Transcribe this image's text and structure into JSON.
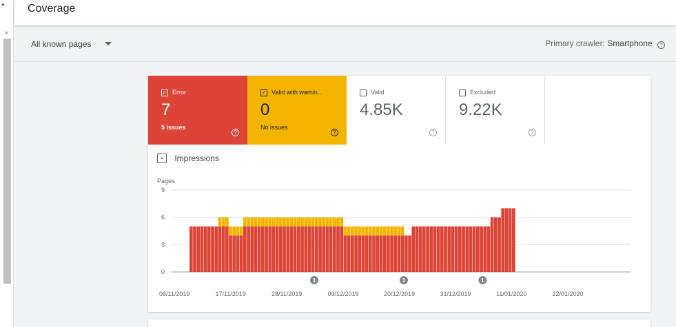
{
  "header": {
    "title": "Coverage"
  },
  "filter": {
    "label": "All known pages"
  },
  "crawler": {
    "label": "Primary crawler:",
    "value": "Smartphone"
  },
  "tiles": [
    {
      "id": "error",
      "label": "Error",
      "value": "7",
      "sub": "5 issues",
      "checked": true,
      "color": "#db4437"
    },
    {
      "id": "warning",
      "label": "Valid with warnin...",
      "value": "0",
      "sub": "No issues",
      "checked": true,
      "color": "#f4b400"
    },
    {
      "id": "valid",
      "label": "Valid",
      "value": "4.85K",
      "sub": "",
      "checked": false,
      "color": "#ffffff"
    },
    {
      "id": "excluded",
      "label": "Excluded",
      "value": "9.22K",
      "sub": "",
      "checked": false,
      "color": "#ffffff"
    }
  ],
  "impressions": {
    "label": "Impressions"
  },
  "chart_data": {
    "type": "bar",
    "ylabel": "Pages",
    "ylim": [
      0,
      9
    ],
    "yticks": [
      0,
      3,
      6,
      9
    ],
    "grid": true,
    "x_tick_labels": [
      "06/11/2019",
      "17/11/2019",
      "28/11/2019",
      "09/12/2019",
      "20/12/2019",
      "31/12/2019",
      "11/01/2020",
      "22/01/2020"
    ],
    "series": [
      {
        "color": "#db4437",
        "values": [
          5,
          5,
          5,
          5,
          5,
          5,
          5,
          5,
          5,
          5,
          5,
          4,
          4,
          4,
          4,
          5,
          5,
          5,
          5,
          5,
          5,
          5,
          5,
          5,
          5,
          5,
          5,
          5,
          5,
          5,
          5,
          5,
          5,
          5,
          5,
          5,
          5,
          5,
          5,
          5,
          5,
          5,
          5,
          4,
          4,
          4,
          4,
          4,
          4,
          4,
          4,
          4,
          4,
          4,
          4,
          4,
          4,
          4,
          4,
          4,
          4,
          4,
          5,
          5,
          5,
          5,
          5,
          5,
          5,
          5,
          5,
          5,
          5,
          5,
          5,
          5,
          5,
          5,
          5,
          5,
          5,
          5,
          5,
          5,
          6,
          6,
          6,
          7,
          7,
          7,
          7
        ]
      },
      {
        "color": "#f4b400",
        "values": [
          0,
          0,
          0,
          0,
          0,
          0,
          0,
          0,
          1,
          1,
          1,
          1,
          1,
          1,
          1,
          1,
          1,
          1,
          1,
          1,
          1,
          1,
          1,
          1,
          1,
          1,
          1,
          1,
          1,
          1,
          1,
          1,
          1,
          1,
          1,
          1,
          1,
          1,
          1,
          1,
          1,
          1,
          1,
          1,
          1,
          1,
          1,
          1,
          1,
          1,
          1,
          1,
          1,
          1,
          1,
          1,
          1,
          1,
          1,
          1,
          0,
          0,
          0,
          0,
          0,
          0,
          0,
          0,
          0,
          0,
          0,
          0,
          0,
          0,
          0,
          0,
          0,
          0,
          0,
          0,
          0,
          0,
          0,
          0,
          0,
          0,
          0,
          0,
          0,
          0,
          0
        ]
      }
    ],
    "annotations": [
      {
        "label": "1",
        "x_index": 35
      },
      {
        "label": "1",
        "x_index": 60
      },
      {
        "label": "1",
        "x_index": 82
      }
    ]
  }
}
